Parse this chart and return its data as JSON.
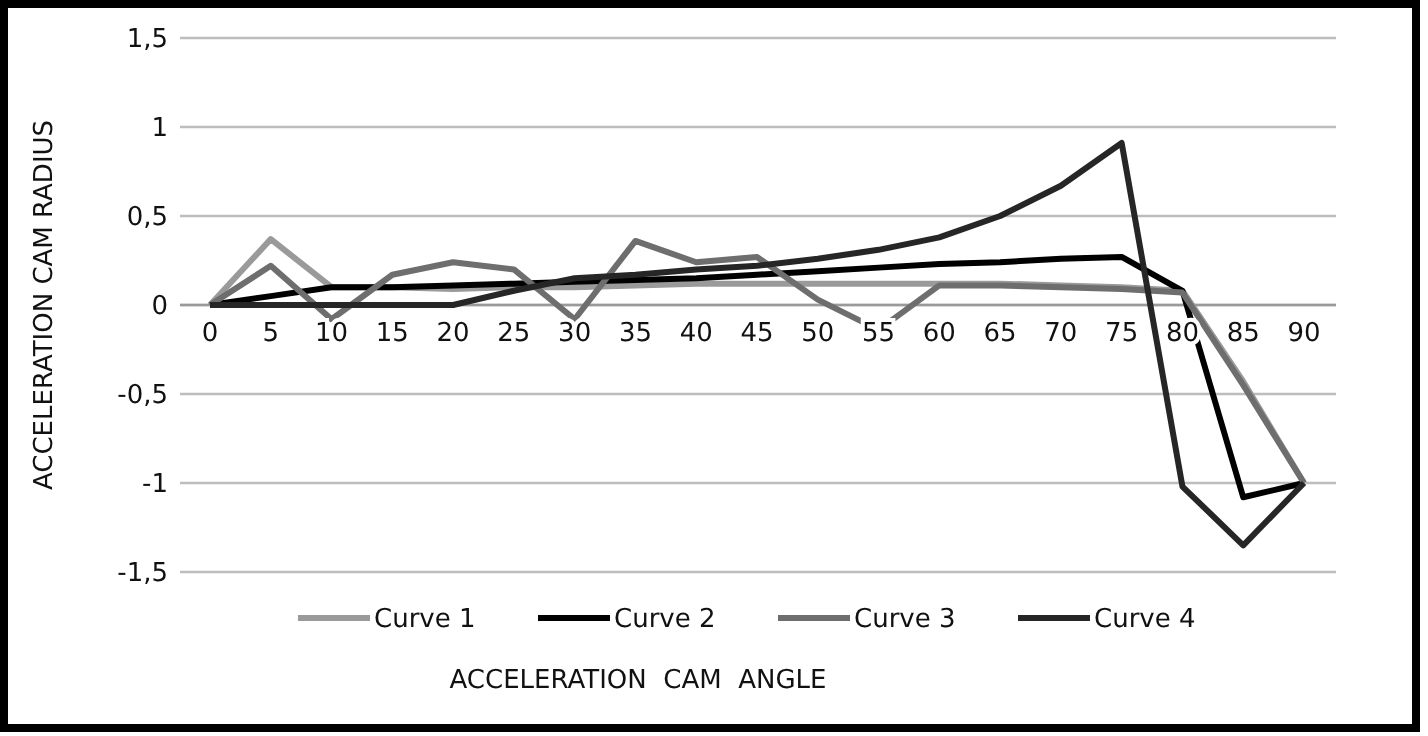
{
  "chart_data": {
    "type": "line",
    "xlabel": "ACCELERATION  CAM  ANGLE",
    "ylabel": "ACCELERATION  CAM  RADIUS",
    "categories": [
      "0",
      "5",
      "10",
      "15",
      "20",
      "25",
      "30",
      "35",
      "40",
      "45",
      "50",
      "55",
      "60",
      "65",
      "70",
      "75",
      "80",
      "85",
      "90"
    ],
    "series": [
      {
        "name": "Curve 1",
        "color": "#9a9a9a",
        "values": [
          0,
          0.37,
          0.1,
          0.1,
          0.09,
          0.1,
          0.1,
          0.11,
          0.12,
          0.12,
          0.12,
          0.12,
          0.12,
          0.12,
          0.11,
          0.1,
          0.08,
          -0.43,
          -1
        ]
      },
      {
        "name": "Curve 2",
        "color": "#000000",
        "values": [
          0,
          0.05,
          0.1,
          0.1,
          0.11,
          0.12,
          0.13,
          0.14,
          0.15,
          0.17,
          0.19,
          0.21,
          0.23,
          0.24,
          0.26,
          0.27,
          0.08,
          -1.08,
          -1
        ]
      },
      {
        "name": "Curve 3",
        "color": "#6e6e6e",
        "values": [
          0,
          0.22,
          -0.08,
          0.17,
          0.24,
          0.2,
          -0.08,
          0.36,
          0.24,
          0.27,
          0.03,
          -0.14,
          0.11,
          0.11,
          0.1,
          0.09,
          0.07,
          -0.45,
          -1
        ]
      },
      {
        "name": "Curve 4",
        "color": "#262626",
        "values": [
          0,
          0,
          0,
          0,
          0,
          0.08,
          0.15,
          0.17,
          0.2,
          0.22,
          0.26,
          0.31,
          0.38,
          0.5,
          0.67,
          0.91,
          -1.02,
          -1.35,
          -1
        ]
      }
    ],
    "ylim": [
      -1.5,
      1.5
    ],
    "yticks": [
      {
        "value": -1.5,
        "label": "-1,5"
      },
      {
        "value": -1,
        "label": "-1"
      },
      {
        "value": -0.5,
        "label": "-0,5"
      },
      {
        "value": 0,
        "label": "0"
      },
      {
        "value": 0.5,
        "label": "0,5"
      },
      {
        "value": 1,
        "label": "1"
      },
      {
        "value": 1.5,
        "label": "1,5"
      }
    ],
    "grid": "y",
    "legend": "bottom",
    "marker": "none",
    "line_style": "solid"
  }
}
